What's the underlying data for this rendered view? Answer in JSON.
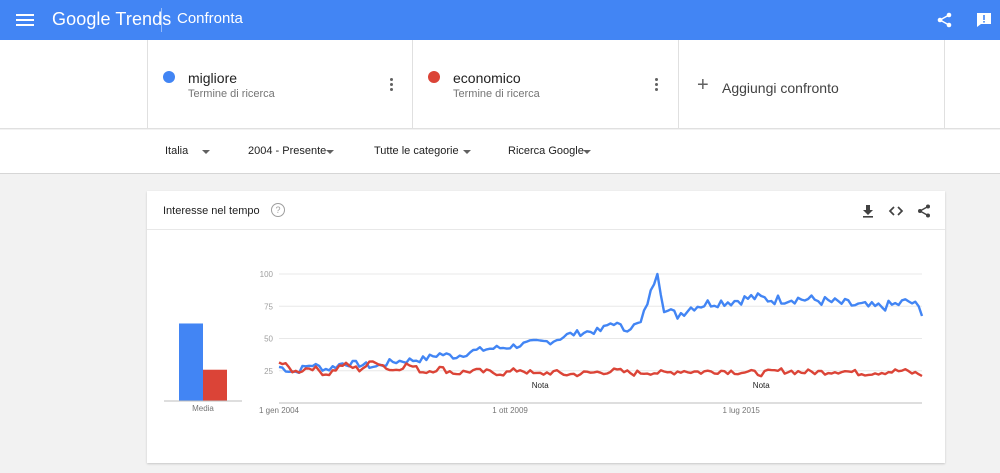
{
  "app": {
    "logo": "Google Trends",
    "title": "Confronta",
    "icons": {
      "menu": "hamburger-menu-icon",
      "share": "share-icon",
      "feedback": "feedback-icon"
    }
  },
  "terms": [
    {
      "name": "migliore",
      "sub": "Termine di ricerca",
      "color": "#4285f4"
    },
    {
      "name": "economico",
      "sub": "Termine di ricerca",
      "color": "#db4437"
    }
  ],
  "add_comparison": {
    "label": "Aggiungi confronto",
    "icon": "+"
  },
  "filters": {
    "region": "Italia",
    "period": "2004 - Presente",
    "category": "Tutte le categorie",
    "search_type": "Ricerca Google"
  },
  "card": {
    "title": "Interesse nel tempo",
    "help_icon": "?",
    "icons": [
      "download-icon",
      "embed-icon",
      "share-icon"
    ]
  },
  "chart_data": {
    "type": "line",
    "y_ticks": [
      100,
      75,
      50,
      25
    ],
    "ylim": [
      0,
      100
    ],
    "x_labels": [
      "1 gen 2004",
      "1 ott 2009",
      "1 lug 2015"
    ],
    "notes": [
      {
        "label": "Nota",
        "date": "2010-07"
      },
      {
        "label": "Nota",
        "date": "2016-01"
      }
    ],
    "average": {
      "label": "Media",
      "values": {
        "migliore": 57,
        "economico": 23
      }
    },
    "series": [
      {
        "name": "migliore",
        "color": "#4285f4",
        "keypoints": [
          [
            2004.0,
            28
          ],
          [
            2004.4,
            24
          ],
          [
            2004.8,
            30
          ],
          [
            2005.2,
            26
          ],
          [
            2005.6,
            31
          ],
          [
            2006.0,
            30
          ],
          [
            2006.4,
            28
          ],
          [
            2006.8,
            32
          ],
          [
            2007.2,
            33
          ],
          [
            2007.6,
            34
          ],
          [
            2008.0,
            38
          ],
          [
            2008.4,
            36
          ],
          [
            2008.8,
            40
          ],
          [
            2009.2,
            42
          ],
          [
            2009.6,
            43
          ],
          [
            2010.0,
            45
          ],
          [
            2010.4,
            47
          ],
          [
            2010.8,
            48
          ],
          [
            2011.2,
            53
          ],
          [
            2011.6,
            55
          ],
          [
            2012.0,
            56
          ],
          [
            2012.3,
            63
          ],
          [
            2012.6,
            57
          ],
          [
            2013.0,
            62
          ],
          [
            2013.4,
            100
          ],
          [
            2013.6,
            72
          ],
          [
            2013.9,
            68
          ],
          [
            2014.3,
            75
          ],
          [
            2014.8,
            78
          ],
          [
            2015.3,
            79
          ],
          [
            2015.8,
            82
          ],
          [
            2016.3,
            80
          ],
          [
            2016.8,
            81
          ],
          [
            2017.3,
            80
          ],
          [
            2017.8,
            78
          ],
          [
            2018.3,
            76
          ],
          [
            2018.8,
            74
          ],
          [
            2019.3,
            76
          ],
          [
            2019.7,
            79
          ],
          [
            2020.0,
            71
          ]
        ]
      },
      {
        "name": "economico",
        "color": "#db4437",
        "keypoints": [
          [
            2004.0,
            32
          ],
          [
            2004.4,
            24
          ],
          [
            2004.8,
            28
          ],
          [
            2005.2,
            22
          ],
          [
            2005.6,
            30
          ],
          [
            2006.0,
            26
          ],
          [
            2006.4,
            33
          ],
          [
            2006.8,
            25
          ],
          [
            2007.2,
            30
          ],
          [
            2007.6,
            24
          ],
          [
            2008.0,
            27
          ],
          [
            2008.4,
            23
          ],
          [
            2008.8,
            25
          ],
          [
            2009.2,
            24
          ],
          [
            2009.6,
            23
          ],
          [
            2010.0,
            26
          ],
          [
            2010.4,
            22
          ],
          [
            2010.8,
            24
          ],
          [
            2011.2,
            22
          ],
          [
            2011.6,
            23
          ],
          [
            2012.0,
            24
          ],
          [
            2012.4,
            25
          ],
          [
            2012.8,
            23
          ],
          [
            2013.2,
            24
          ],
          [
            2013.6,
            23
          ],
          [
            2014.0,
            25
          ],
          [
            2014.5,
            24
          ],
          [
            2015.0,
            25
          ],
          [
            2015.5,
            24
          ],
          [
            2016.0,
            23
          ],
          [
            2016.5,
            25
          ],
          [
            2017.0,
            24
          ],
          [
            2017.5,
            24
          ],
          [
            2018.0,
            25
          ],
          [
            2018.5,
            23
          ],
          [
            2019.0,
            24
          ],
          [
            2019.5,
            25
          ],
          [
            2020.0,
            22
          ]
        ]
      }
    ]
  }
}
